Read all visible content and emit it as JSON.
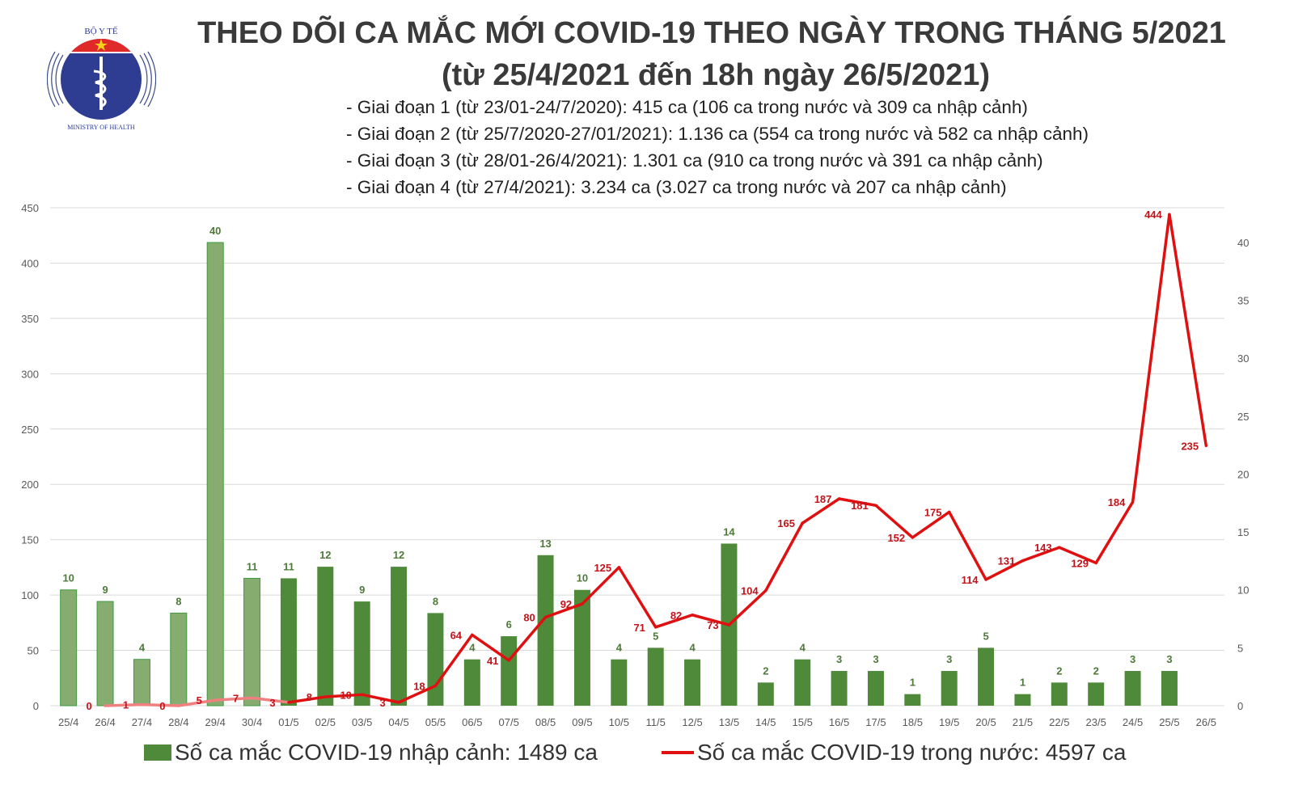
{
  "logo": {
    "text_top": "BỘ Y TẾ",
    "text_bottom": "MINISTRY OF HEALTH"
  },
  "title": "THEO DÕI CA MẮC MỚI COVID-19 THEO NGÀY TRONG THÁNG 5/2021",
  "subtitle": "(từ 25/4/2021 đến 18h ngày 26/5/2021)",
  "phases": [
    "- Giai đoạn 1 (từ 23/01-24/7/2020): 415 ca (106 ca trong nước và 309 ca nhập cảnh)",
    "- Giai đoạn 2 (từ 25/7/2020-27/01/2021): 1.136 ca (554 ca trong nước và 582 ca nhập cảnh)",
    "- Giai đoạn 3 (từ 28/01-26/4/2021): 1.301 ca (910 ca trong nước và 391 ca nhập cảnh)",
    "- Giai đoạn 4 (từ 27/4/2021): 3.234 ca (3.027 ca trong nước và 207 ca nhập cảnh)"
  ],
  "chart_data": {
    "type": "bar+line",
    "categories": [
      "25/4",
      "26/4",
      "27/4",
      "28/4",
      "29/4",
      "30/4",
      "01/5",
      "02/5",
      "03/5",
      "04/5",
      "05/5",
      "06/5",
      "07/5",
      "08/5",
      "09/5",
      "10/5",
      "11/5",
      "12/5",
      "13/5",
      "14/5",
      "15/5",
      "16/5",
      "17/5",
      "18/5",
      "19/5",
      "20/5",
      "21/5",
      "22/5",
      "23/5",
      "24/5",
      "25/5",
      "26/5"
    ],
    "left_axis": {
      "ylim": [
        0,
        450
      ],
      "ticks": [
        0,
        50,
        100,
        150,
        200,
        250,
        300,
        350,
        400,
        450
      ]
    },
    "right_axis": {
      "ylim": [
        0,
        43
      ],
      "ticks": [
        0,
        5,
        10,
        15,
        20,
        25,
        30,
        35,
        40
      ]
    },
    "grid": true,
    "legend_position": "bottom",
    "series": [
      {
        "name": "Số ca mắc COVID-19 nhập cảnh: 1489 ca",
        "type": "bar",
        "axis": "right",
        "color": "#4e8a3a",
        "color_april": "#86ad6f",
        "values": [
          10,
          9,
          4,
          8,
          40,
          11,
          11,
          12,
          9,
          12,
          8,
          4,
          6,
          13,
          10,
          4,
          5,
          4,
          14,
          2,
          4,
          3,
          3,
          1,
          3,
          5,
          1,
          2,
          2,
          3,
          3,
          null
        ]
      },
      {
        "name": "Số ca mắc COVID-19 trong nước: 4597 ca",
        "type": "line",
        "axis": "left",
        "color": "#e01010",
        "color_april": "#f08080",
        "values": [
          null,
          0,
          1,
          0,
          5,
          7,
          3,
          8,
          10,
          3,
          18,
          64,
          41,
          80,
          92,
          125,
          71,
          82,
          73,
          104,
          165,
          187,
          181,
          152,
          175,
          114,
          131,
          143,
          129,
          184,
          444,
          235
        ]
      }
    ]
  }
}
